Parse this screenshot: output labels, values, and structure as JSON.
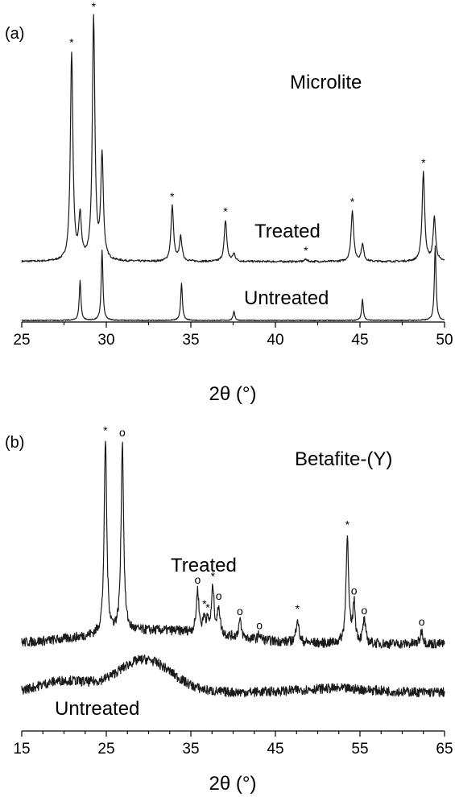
{
  "chart_data": [
    {
      "type": "line",
      "panel_label": "(a)",
      "title": "Microlite",
      "xlabel": "2θ (°)",
      "xlim": [
        25,
        50
      ],
      "x_ticks": [
        25,
        30,
        35,
        40,
        45,
        50
      ],
      "x_minor_step": 2.5,
      "y_axis": "hidden",
      "series": [
        {
          "name": "Treated",
          "noise": 0.004,
          "peaks": [
            {
              "x": 27.95,
              "h": 0.86,
              "marker": "*"
            },
            {
              "x": 28.45,
              "h": 0.18
            },
            {
              "x": 29.25,
              "h": 1.0,
              "marker": "*"
            },
            {
              "x": 29.75,
              "h": 0.43
            },
            {
              "x": 33.9,
              "h": 0.23,
              "marker": "*"
            },
            {
              "x": 34.4,
              "h": 0.1
            },
            {
              "x": 37.05,
              "h": 0.17,
              "marker": "*"
            },
            {
              "x": 37.55,
              "h": 0.03
            },
            {
              "x": 41.8,
              "h": 0.01,
              "marker": "*"
            },
            {
              "x": 44.55,
              "h": 0.21,
              "marker": "*"
            },
            {
              "x": 45.15,
              "h": 0.07
            },
            {
              "x": 48.75,
              "h": 0.37,
              "marker": "*"
            },
            {
              "x": 49.4,
              "h": 0.18
            }
          ]
        },
        {
          "name": "Untreated",
          "noise": 0.002,
          "peaks": [
            {
              "x": 28.45,
              "h": 0.17
            },
            {
              "x": 29.75,
              "h": 0.3
            },
            {
              "x": 34.45,
              "h": 0.16
            },
            {
              "x": 37.55,
              "h": 0.04
            },
            {
              "x": 45.15,
              "h": 0.09
            },
            {
              "x": 49.45,
              "h": 0.32
            }
          ]
        }
      ]
    },
    {
      "type": "line",
      "panel_label": "(b)",
      "title": "Betafite-(Y)",
      "xlabel": "2θ (°)",
      "xlim": [
        15,
        65
      ],
      "x_ticks": [
        15,
        25,
        35,
        45,
        55,
        65
      ],
      "x_minor_step": 2.5,
      "y_axis": "hidden",
      "series": [
        {
          "name": "Treated",
          "noise": 0.025,
          "peaks": [
            {
              "x": 24.9,
              "h": 1.0,
              "marker": "*"
            },
            {
              "x": 26.9,
              "h": 0.98,
              "marker": "o"
            },
            {
              "x": 35.8,
              "h": 0.22,
              "marker": "o"
            },
            {
              "x": 36.6,
              "h": 0.08,
              "marker": "*"
            },
            {
              "x": 37.0,
              "h": 0.05,
              "marker": "*"
            },
            {
              "x": 37.6,
              "h": 0.24,
              "marker": "*"
            },
            {
              "x": 38.3,
              "h": 0.14,
              "marker": "o"
            },
            {
              "x": 40.8,
              "h": 0.09,
              "marker": "o"
            },
            {
              "x": 43.1,
              "h": 0.03,
              "marker": "o"
            },
            {
              "x": 47.6,
              "h": 0.13,
              "marker": "*"
            },
            {
              "x": 53.5,
              "h": 0.56,
              "marker": "*"
            },
            {
              "x": 54.3,
              "h": 0.2,
              "marker": "o"
            },
            {
              "x": 55.5,
              "h": 0.12,
              "marker": "o"
            },
            {
              "x": 62.3,
              "h": 0.07,
              "marker": "o"
            }
          ]
        },
        {
          "name": "Untreated",
          "noise": 0.025,
          "peaks": []
        }
      ]
    }
  ]
}
